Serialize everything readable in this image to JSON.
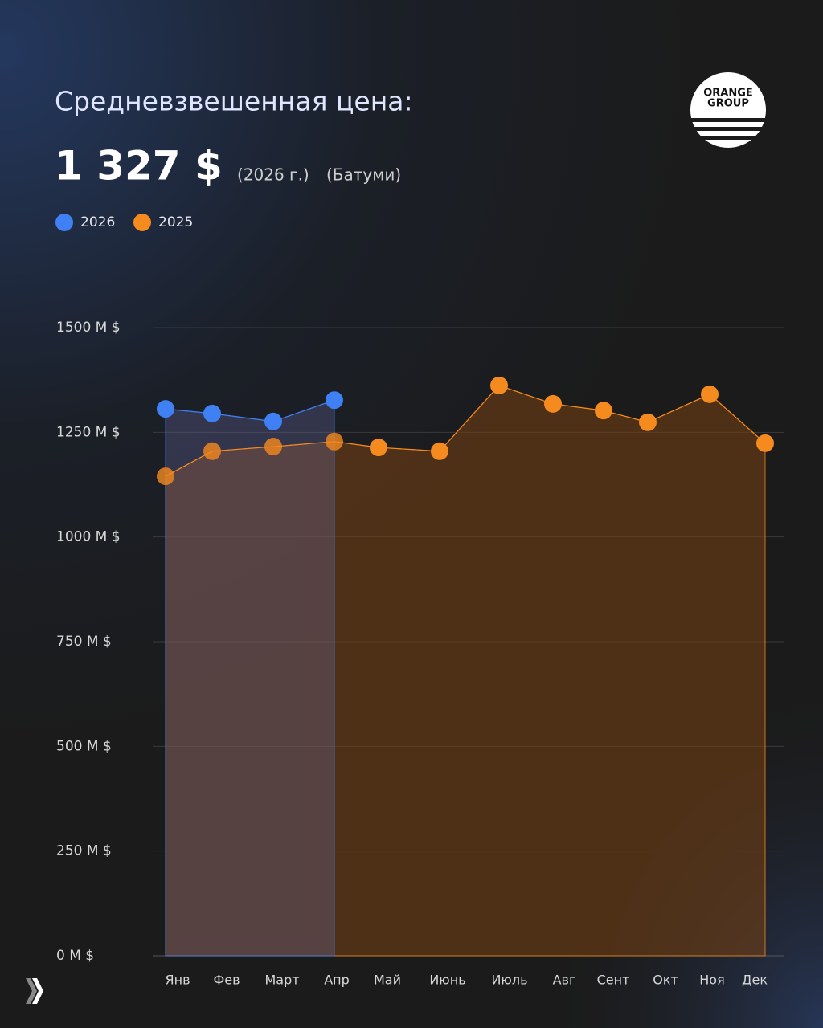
{
  "chart_data": {
    "type": "area",
    "title": "Средневзвешенная цена:",
    "annotations": [
      "1 327 $",
      "(2026 г.)",
      "(Батуми)"
    ],
    "categories": [
      "Янв",
      "Фев",
      "Март",
      "Апр",
      "Май",
      "Июнь",
      "Июль",
      "Авг",
      "Сент",
      "Окт",
      "Ноя",
      "Дек"
    ],
    "series": [
      {
        "name": "2026",
        "color": "#3f80f5",
        "values": [
          1306,
          1295,
          1276,
          1327,
          null,
          null,
          null,
          null,
          null,
          null,
          null,
          null
        ]
      },
      {
        "name": "2025",
        "color": "#f58a1f",
        "values": [
          1145,
          1205,
          1216,
          1228,
          1214,
          1205,
          1362,
          1318,
          1302,
          1274,
          1341,
          1224
        ]
      }
    ],
    "ylim": [
      0,
      1500
    ],
    "yticks": [
      {
        "value": 0,
        "label": "0 M $"
      },
      {
        "value": 250,
        "label": "250 M $"
      },
      {
        "value": 500,
        "label": "500 M $"
      },
      {
        "value": 750,
        "label": "750 M $"
      },
      {
        "value": 1000,
        "label": "1000 M $"
      },
      {
        "value": 1250,
        "label": "1250 M $"
      },
      {
        "value": 1500,
        "label": "1500 M $"
      }
    ],
    "grid": true,
    "legend": "top-left"
  },
  "logo": {
    "lines": [
      "ORANGE",
      "GROUP"
    ]
  }
}
